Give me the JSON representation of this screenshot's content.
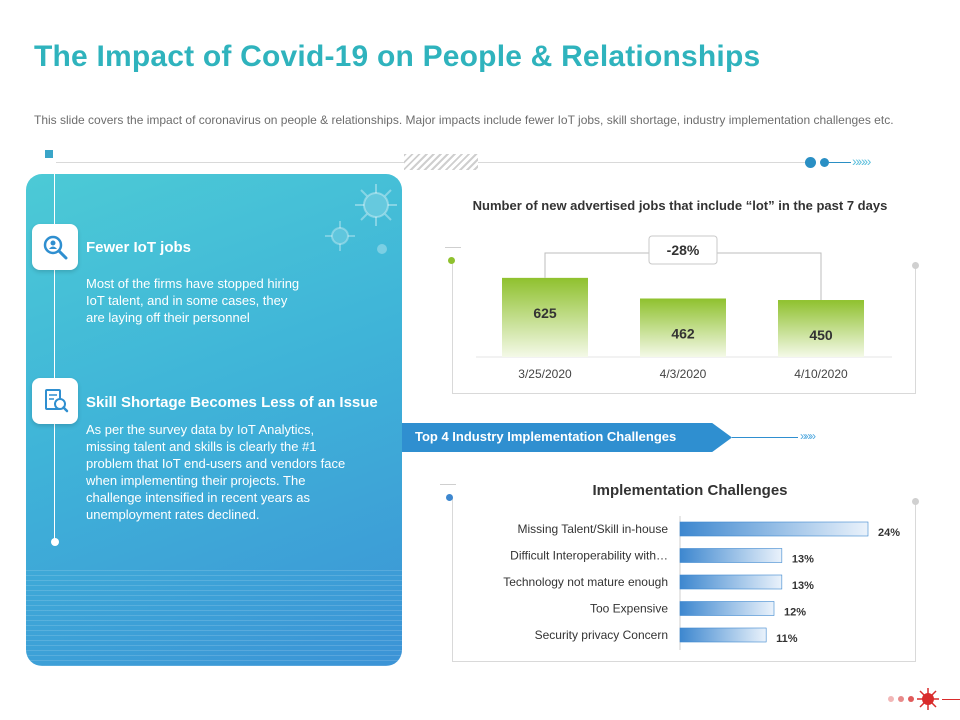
{
  "header": {
    "title": "The Impact of Covid-19 on People & Relationships",
    "subtitle": "This slide covers the impact of coronavirus  on people & relationships. Major impacts include fewer IoT jobs, skill shortage, industry implementation challenges etc."
  },
  "left_panel": {
    "items": [
      {
        "title": "Fewer IoT jobs",
        "text_lines": [
          "Most of the firms have stopped hiring",
          "IoT talent, and in some cases, they",
          "are laying off their personnel"
        ]
      },
      {
        "title": "Skill Shortage Becomes Less of an Issue",
        "text_lines": [
          "As per the survey data by IoT Analytics,",
          "missing talent and skills is clearly the #1",
          "problem that IoT end-users and vendors face",
          "when implementing their projects. The",
          "challenge intensified in recent years as",
          "unemployment rates declined."
        ]
      }
    ]
  },
  "banner": {
    "label": "Top 4 Industry Implementation Challenges"
  },
  "colors": {
    "title": "#2fb3bd",
    "bar_green_top": "#8fc12e",
    "bar_blue": "#3d87cf",
    "banner": "#2f8fd0"
  },
  "chart_data": [
    {
      "type": "bar",
      "title": "Number of new advertised jobs that include “lot” in the past 7 days",
      "categories": [
        "3/25/2020",
        "4/3/2020",
        "4/10/2020"
      ],
      "values": [
        625,
        462,
        450
      ],
      "annotation": "-28%",
      "ylim": [
        0,
        700
      ]
    },
    {
      "type": "bar",
      "orientation": "horizontal",
      "title": "Implementation Challenges",
      "categories": [
        "Missing Talent/Skill in-house",
        "Difficult Interoperability with…",
        "Technology not mature enough",
        "Too Expensive",
        "Security privacy Concern"
      ],
      "values": [
        24,
        13,
        13,
        12,
        11
      ],
      "value_labels": [
        "24%",
        "13%",
        "13%",
        "12%",
        "11%"
      ],
      "xlim": [
        0,
        24
      ]
    }
  ]
}
